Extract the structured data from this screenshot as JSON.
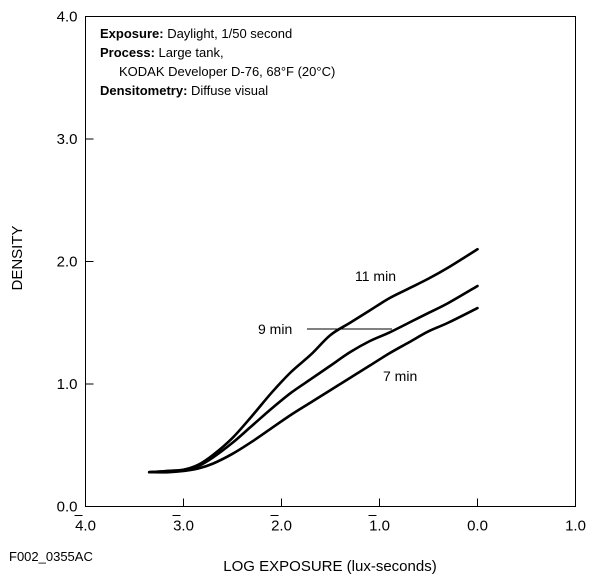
{
  "chart_data": {
    "type": "line",
    "title": "",
    "xlabel": "LOG EXPOSURE (lux-seconds)",
    "ylabel": "DENSITY",
    "xlim": [
      -4.0,
      1.0
    ],
    "ylim": [
      0.0,
      4.0
    ],
    "x_ticks": [
      {
        "value": -4.0,
        "label": "4.0",
        "bar": true
      },
      {
        "value": -3.0,
        "label": "3.0",
        "bar": true
      },
      {
        "value": -2.0,
        "label": "2.0",
        "bar": true
      },
      {
        "value": -1.0,
        "label": "1.0",
        "bar": true
      },
      {
        "value": 0.0,
        "label": "0.0",
        "bar": false
      },
      {
        "value": 1.0,
        "label": "1.0",
        "bar": false
      }
    ],
    "y_ticks": [
      {
        "value": 0.0,
        "label": "0.0"
      },
      {
        "value": 1.0,
        "label": "1.0"
      },
      {
        "value": 2.0,
        "label": "2.0"
      },
      {
        "value": 3.0,
        "label": "3.0"
      },
      {
        "value": 4.0,
        "label": "4.0"
      }
    ],
    "grid": false,
    "series": [
      {
        "name": "11 min",
        "x": [
          -3.35,
          -3.15,
          -3.0,
          -2.85,
          -2.7,
          -2.5,
          -2.3,
          -2.1,
          -1.9,
          -1.7,
          -1.5,
          -1.3,
          -1.1,
          -0.9,
          -0.7,
          -0.5,
          -0.3,
          0.0
        ],
        "y": [
          0.28,
          0.29,
          0.3,
          0.34,
          0.42,
          0.56,
          0.74,
          0.93,
          1.1,
          1.24,
          1.4,
          1.5,
          1.6,
          1.7,
          1.78,
          1.86,
          1.95,
          2.1
        ]
      },
      {
        "name": "9 min",
        "x": [
          -3.35,
          -3.15,
          -3.0,
          -2.85,
          -2.7,
          -2.5,
          -2.3,
          -2.1,
          -1.9,
          -1.7,
          -1.5,
          -1.3,
          -1.1,
          -0.9,
          -0.7,
          -0.5,
          -0.3,
          0.0
        ],
        "y": [
          0.28,
          0.29,
          0.3,
          0.33,
          0.4,
          0.52,
          0.66,
          0.8,
          0.93,
          1.04,
          1.15,
          1.26,
          1.35,
          1.42,
          1.5,
          1.58,
          1.66,
          1.8
        ]
      },
      {
        "name": "7 min",
        "x": [
          -3.35,
          -3.15,
          -3.0,
          -2.85,
          -2.7,
          -2.5,
          -2.3,
          -2.1,
          -1.9,
          -1.7,
          -1.5,
          -1.3,
          -1.1,
          -0.9,
          -0.7,
          -0.5,
          -0.3,
          0.0
        ],
        "y": [
          0.28,
          0.28,
          0.29,
          0.31,
          0.35,
          0.43,
          0.53,
          0.64,
          0.75,
          0.85,
          0.95,
          1.05,
          1.15,
          1.25,
          1.34,
          1.43,
          1.5,
          1.62
        ]
      }
    ],
    "annotations": {
      "exposure_label": "Exposure:",
      "exposure_value": " Daylight, 1/50 second",
      "process_label": "Process:",
      "process_value": " Large tank,",
      "process_value_line2": "KODAK Developer D-76, 68°F (20°C)",
      "densitometry_label": "Densitometry:",
      "densitometry_value": " Diffuse visual",
      "figure_id": "F002_0355AC"
    },
    "curve_labels": {
      "label_11": "11 min",
      "label_9": "9 min",
      "label_7": "7 min"
    }
  }
}
